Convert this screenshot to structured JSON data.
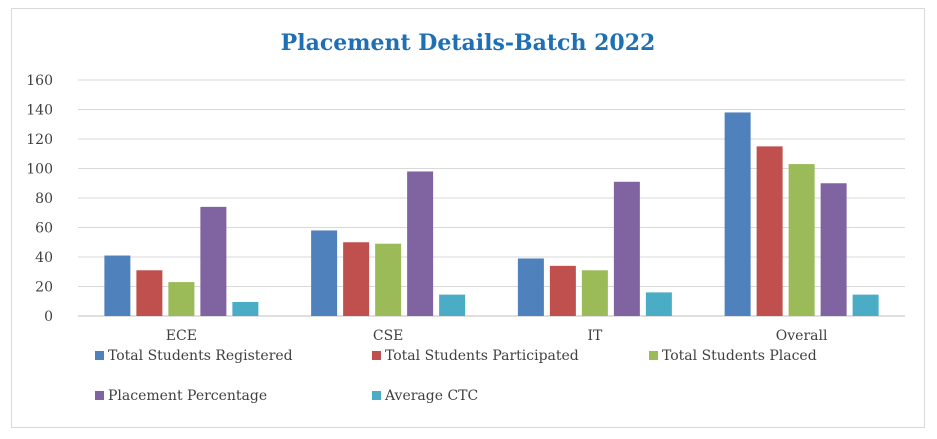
{
  "chart_data": {
    "type": "bar",
    "title": "Placement Details-Batch 2022",
    "xlabel": "",
    "ylabel": "",
    "ylim": [
      0,
      160
    ],
    "yticks": [
      0,
      20,
      40,
      60,
      80,
      100,
      120,
      140,
      160
    ],
    "grid": true,
    "legend_position": "bottom",
    "categories": [
      "ECE",
      "CSE",
      "IT",
      "Overall"
    ],
    "series": [
      {
        "name": "Total Students Registered",
        "color": "#4f81bd",
        "values": [
          41,
          58,
          39,
          138
        ]
      },
      {
        "name": "Total Students Participated",
        "color": "#c0504d",
        "values": [
          31,
          50,
          34,
          115
        ]
      },
      {
        "name": "Total Students Placed",
        "color": "#9bbb59",
        "values": [
          23,
          49,
          31,
          103
        ]
      },
      {
        "name": "Placement Percentage",
        "color": "#8064a2",
        "values": [
          74,
          98,
          91,
          90
        ]
      },
      {
        "name": "Average CTC",
        "color": "#4bacc6",
        "values": [
          9.5,
          14.5,
          16,
          14.5
        ]
      }
    ]
  }
}
